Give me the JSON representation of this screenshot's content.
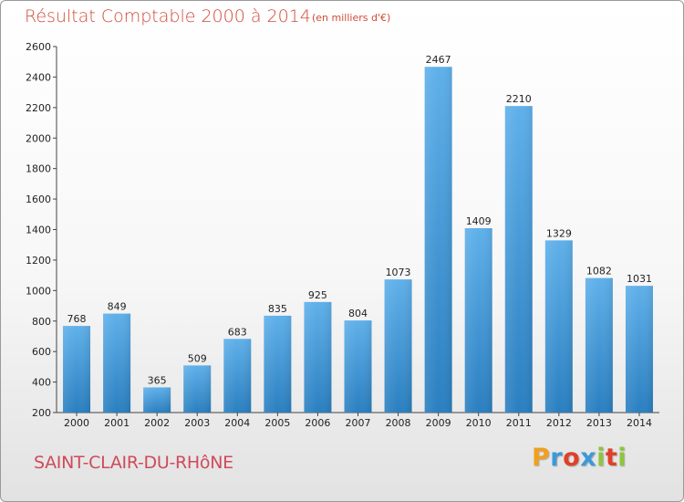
{
  "header": {
    "title": "Résultat Comptable 2000 à 2014",
    "unit": "(en milliers d'€)"
  },
  "footer": {
    "commune": "SAINT-CLAIR-DU-RHôNE",
    "brand_letters": [
      "P",
      "r",
      "o",
      "x",
      "i",
      "t",
      "i"
    ],
    "brand_colors": [
      "#f0a020",
      "#3a9ad9",
      "#e0402a",
      "#3a9ad9",
      "#8cc63f",
      "#e0402a",
      "#8cc63f"
    ]
  },
  "colors": {
    "bar_top": "#5fb0ea",
    "bar_bottom": "#2a7fc0",
    "title": "#d04a38"
  },
  "chart_data": {
    "type": "bar",
    "title": "Résultat Comptable 2000 à 2014",
    "xlabel": "",
    "ylabel": "",
    "categories": [
      "2000",
      "2001",
      "2002",
      "2003",
      "2004",
      "2005",
      "2006",
      "2007",
      "2008",
      "2009",
      "2010",
      "2011",
      "2012",
      "2013",
      "2014"
    ],
    "values": [
      768,
      849,
      365,
      509,
      683,
      835,
      925,
      804,
      1073,
      2467,
      1409,
      2210,
      1329,
      1082,
      1031
    ],
    "ylim": [
      200,
      2600
    ],
    "yticks": [
      200,
      400,
      600,
      800,
      1000,
      1200,
      1400,
      1600,
      1800,
      2000,
      2200,
      2400,
      2600
    ],
    "grid": false,
    "legend": "none"
  }
}
